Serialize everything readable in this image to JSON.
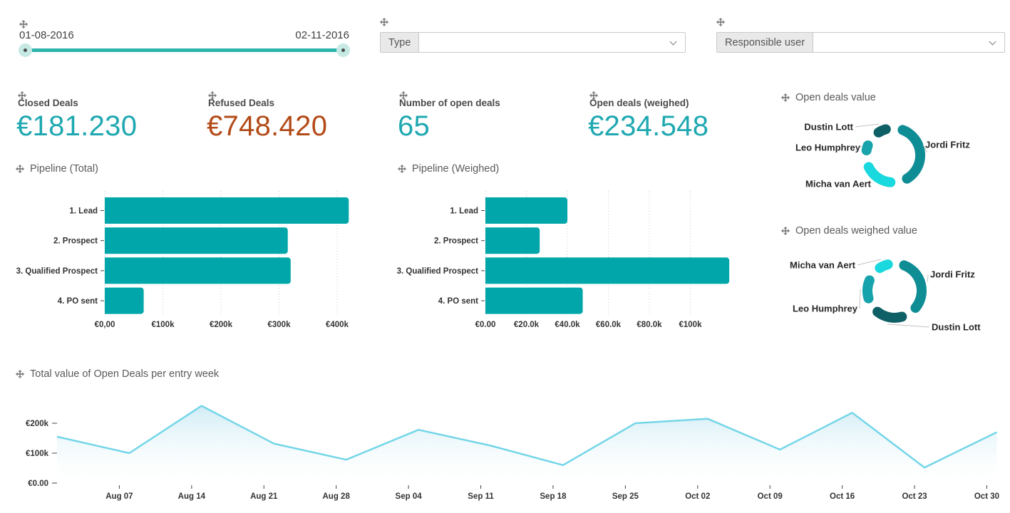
{
  "colors": {
    "teal_value": "#1FA8B1",
    "rust_value": "#B34B18",
    "bar_teal": "#00A6A9",
    "line_cyan": "#74D6E8",
    "slider_track": "#2DB5AC",
    "donut_dark_teal": "#0E5F66",
    "donut_medium_teal": "#0F8D95",
    "donut_teal": "#17A3AB",
    "donut_cyan": "#19D9DE"
  },
  "filters": {
    "date_range": {
      "start_label": "01-08-2016",
      "end_label": "02-11-2016"
    },
    "type": {
      "label": "Type",
      "selected": ""
    },
    "responsible_user": {
      "label": "Responsible user",
      "selected": ""
    }
  },
  "kpis": [
    {
      "title": "Closed Deals",
      "value": "€181.230",
      "color": "#1FA8B1"
    },
    {
      "title": "Refused Deals",
      "value": "€748.420",
      "color": "#B34B18"
    },
    {
      "title": "Number of open deals",
      "value": "65",
      "color": "#1FA8B1"
    },
    {
      "title": "Open deals (weighed)",
      "value": "€234.548",
      "color": "#1FA8B1"
    }
  ],
  "chart_data": [
    {
      "id": "open_deals_value",
      "type": "pie",
      "title": "Open deals value",
      "legend_position": "callout-labels",
      "start_deg": 10,
      "gap_deg": 15,
      "slices": [
        {
          "label": "Jordi Fritz",
          "arc_deg": 150,
          "color": "#0F8D95"
        },
        {
          "label": "Micha van Aert",
          "arc_deg": 80,
          "color": "#19D9DE"
        },
        {
          "label": "Leo Humphrey",
          "arc_deg": 32,
          "color": "#17A3AB"
        },
        {
          "label": "Dustin Lott",
          "arc_deg": 38,
          "color": "#0E5F66"
        }
      ]
    },
    {
      "id": "pipeline_total",
      "type": "bar",
      "title": "Pipeline (Total)",
      "orientation": "horizontal",
      "categories": [
        "1. Lead",
        "2. Prospect",
        "3. Qualified Prospect",
        "4. PO sent"
      ],
      "values": [
        420000,
        315000,
        320000,
        67000
      ],
      "xtick_labels": [
        "€0,00",
        "€100k",
        "€200k",
        "€300k",
        "€400k"
      ],
      "xtick_values": [
        0,
        100000,
        200000,
        300000,
        400000
      ],
      "xtick_step": 100000,
      "xlim": [
        0,
        430000
      ],
      "grid": "dotted-vertical",
      "bar_color": "#00A6A9"
    },
    {
      "id": "pipeline_weighed",
      "type": "bar",
      "title": "Pipeline (Weighed)",
      "orientation": "horizontal",
      "categories": [
        "1. Lead",
        "2. Prospect",
        "3. Qualified Prospect",
        "4. PO sent"
      ],
      "values": [
        40000,
        26500,
        119000,
        47500
      ],
      "xtick_labels": [
        "€0.00",
        "€20.0k",
        "€40.0k",
        "€60.0k",
        "€80.0k",
        "€100k"
      ],
      "xtick_values": [
        0,
        20000,
        40000,
        60000,
        80000,
        100000
      ],
      "xtick_step": 20000,
      "xlim": [
        0,
        120000
      ],
      "grid": "dotted-vertical",
      "bar_color": "#00A6A9"
    },
    {
      "id": "open_deals_weighed_value",
      "type": "pie",
      "title": "Open deals weighed value",
      "legend_position": "callout-labels",
      "start_deg": 10,
      "gap_deg": 13.5,
      "slices": [
        {
          "label": "Jordi Fritz",
          "arc_deg": 130,
          "color": "#0F8D95"
        },
        {
          "label": "Dustin Lott",
          "arc_deg": 76,
          "color": "#0E5F66"
        },
        {
          "label": "Leo Humphrey",
          "arc_deg": 60,
          "color": "#17A3AB"
        },
        {
          "label": "Micha van Aert",
          "arc_deg": 40,
          "color": "#19D9DE"
        }
      ]
    },
    {
      "id": "total_value_open_deals_per_entry_week",
      "type": "area",
      "title": "Total value of Open Deals per entry week",
      "x_labels": [
        "",
        "Aug 07",
        "Aug 14",
        "Aug 21",
        "Aug 28",
        "Sep 04",
        "Sep 11",
        "Sep 18",
        "Sep 25",
        "Oct 02",
        "Oct 09",
        "Oct 16",
        "Oct 23",
        "Oct 30"
      ],
      "values": [
        155000,
        100000,
        258000,
        132000,
        78000,
        178000,
        125000,
        60000,
        200000,
        215000,
        112000,
        235000,
        52000,
        170000
      ],
      "ytick_labels": [
        "€0.00",
        "€100k",
        "€200k"
      ],
      "ytick_values": [
        0,
        100000,
        200000
      ],
      "ylim": [
        0,
        260000
      ],
      "grid": "off",
      "line_color": "#74D6E8",
      "fill": "light-blue-gradient"
    }
  ]
}
